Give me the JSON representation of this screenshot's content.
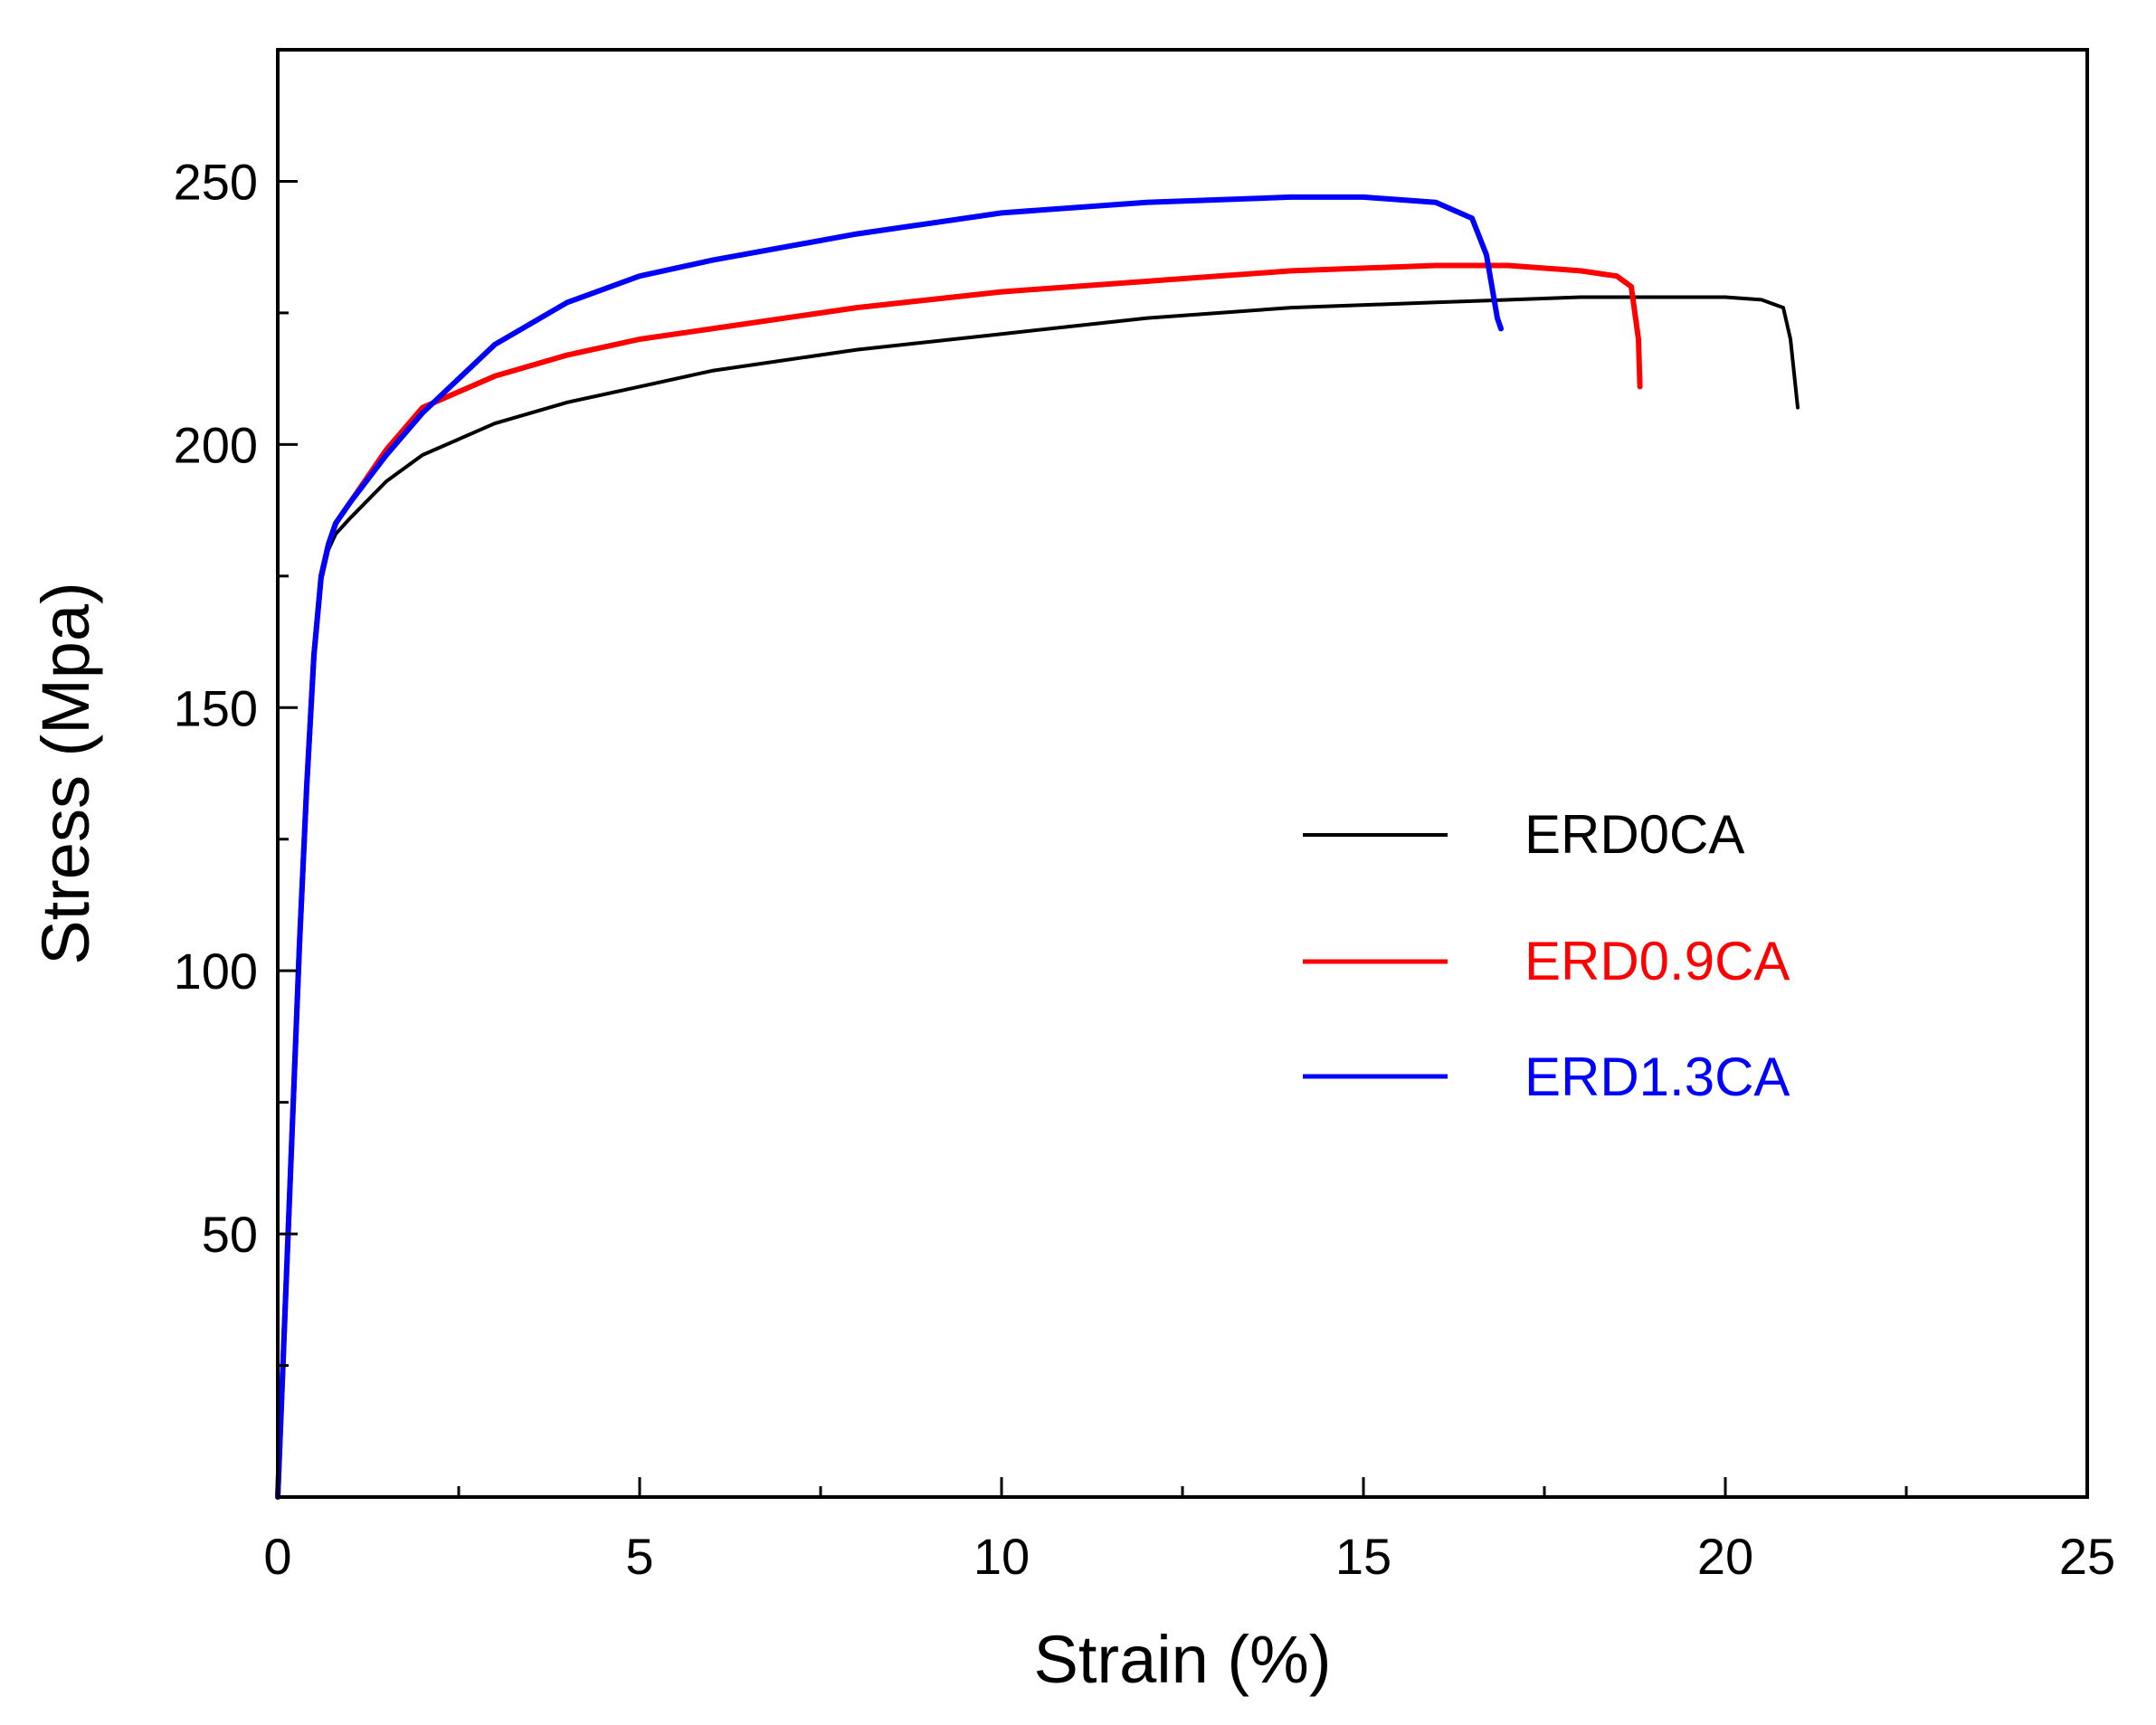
{
  "chart_data": {
    "type": "line",
    "title": "",
    "xlabel": "Strain (%)",
    "ylabel": "Stress (Mpa)",
    "xlim": [
      0,
      25
    ],
    "ylim": [
      0,
      275
    ],
    "x_ticks": [
      0,
      5,
      10,
      15,
      20,
      25
    ],
    "x_tick_labels": [
      "0",
      "5",
      "10",
      "15",
      "20",
      "25"
    ],
    "y_ticks": [
      50,
      100,
      150,
      200,
      250
    ],
    "y_tick_labels": [
      "50",
      "100",
      "150",
      "200",
      "250"
    ],
    "grid": false,
    "legend_position": "right-middle",
    "series": [
      {
        "name": "ERD0CA",
        "color": "#000000",
        "x": [
          0,
          0.1,
          0.2,
          0.3,
          0.4,
          0.5,
          0.6,
          0.7,
          0.8,
          1.0,
          1.5,
          2.0,
          3.0,
          4.0,
          5.0,
          6.0,
          8.0,
          10.0,
          12.0,
          14.0,
          16.0,
          18.0,
          19.0,
          20.0,
          20.5,
          20.8,
          20.9,
          21.0
        ],
        "y": [
          0,
          35,
          70,
          105,
          135,
          160,
          174,
          180,
          183,
          186,
          193,
          198,
          204,
          208,
          211,
          214,
          218,
          221,
          224,
          226,
          227,
          228,
          228,
          228,
          227.5,
          226,
          220,
          207
        ]
      },
      {
        "name": "ERD0.9CA",
        "color": "#ff0000",
        "x": [
          0,
          0.1,
          0.2,
          0.3,
          0.4,
          0.5,
          0.6,
          0.7,
          0.8,
          1.0,
          1.5,
          2.0,
          3.0,
          4.0,
          5.0,
          6.0,
          8.0,
          10.0,
          12.0,
          14.0,
          16.0,
          17.0,
          18.0,
          18.5,
          18.7,
          18.8,
          18.82
        ],
        "y": [
          0,
          35,
          70,
          105,
          135,
          160,
          175,
          181,
          185,
          189,
          199,
          207,
          213,
          217,
          220,
          222,
          226,
          229,
          231,
          233,
          234,
          234,
          233,
          232,
          230,
          220,
          211
        ]
      },
      {
        "name": "ERD1.3CA",
        "color": "#0000ff",
        "x": [
          0,
          0.1,
          0.2,
          0.3,
          0.4,
          0.5,
          0.6,
          0.7,
          0.8,
          1.0,
          1.5,
          2.0,
          3.0,
          4.0,
          5.0,
          6.0,
          8.0,
          10.0,
          12.0,
          14.0,
          15.0,
          16.0,
          16.5,
          16.7,
          16.8,
          16.85,
          16.9
        ],
        "y": [
          0,
          35,
          70,
          105,
          135,
          160,
          175,
          181,
          185,
          189,
          198,
          206,
          219,
          227,
          232,
          235,
          240,
          244,
          246,
          247,
          247,
          246,
          243,
          236,
          228,
          224,
          222
        ]
      }
    ]
  }
}
